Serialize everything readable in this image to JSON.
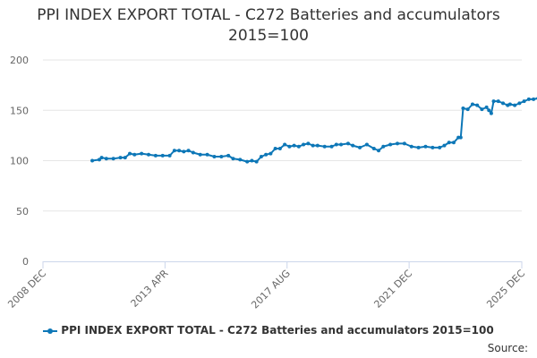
{
  "chart_data": {
    "type": "line",
    "title": "PPI INDEX EXPORT TOTAL - C272 Batteries and accumulators 2015=100",
    "xlabel": "",
    "ylabel": "",
    "x_tick_labels": [
      "2008 DEC",
      "2013 APR",
      "2017 AUG",
      "2021 DEC",
      "2025 DEC"
    ],
    "x_tick_dates": [
      "2008-12",
      "2013-04",
      "2017-08",
      "2021-12",
      "2025-12"
    ],
    "y_ticks": [
      0,
      50,
      100,
      150,
      200
    ],
    "ylim": [
      0,
      200
    ],
    "xlim": [
      "2008-12",
      "2025-12"
    ],
    "grid": true,
    "legend_position": "bottom",
    "series": [
      {
        "name": "PPI INDEX EXPORT TOTAL - C272 Batteries and accumulators 2015=100",
        "color": "#0d77b7",
        "points": [
          [
            "2010-09",
            100
          ],
          [
            "2010-12",
            101
          ],
          [
            "2011-01",
            103
          ],
          [
            "2011-03",
            102
          ],
          [
            "2011-06",
            102
          ],
          [
            "2011-09",
            103
          ],
          [
            "2011-11",
            103
          ],
          [
            "2012-01",
            107
          ],
          [
            "2012-03",
            106
          ],
          [
            "2012-06",
            107
          ],
          [
            "2012-09",
            106
          ],
          [
            "2012-12",
            105
          ],
          [
            "2013-03",
            105
          ],
          [
            "2013-06",
            105
          ],
          [
            "2013-08",
            110
          ],
          [
            "2013-10",
            110
          ],
          [
            "2013-12",
            109
          ],
          [
            "2014-02",
            110
          ],
          [
            "2014-04",
            108
          ],
          [
            "2014-07",
            106
          ],
          [
            "2014-10",
            106
          ],
          [
            "2015-01",
            104
          ],
          [
            "2015-04",
            104
          ],
          [
            "2015-07",
            105
          ],
          [
            "2015-09",
            102
          ],
          [
            "2015-12",
            101
          ],
          [
            "2016-03",
            99
          ],
          [
            "2016-05",
            100
          ],
          [
            "2016-07",
            99
          ],
          [
            "2016-09",
            104
          ],
          [
            "2016-11",
            106
          ],
          [
            "2017-01",
            107
          ],
          [
            "2017-03",
            112
          ],
          [
            "2017-05",
            112
          ],
          [
            "2017-07",
            116
          ],
          [
            "2017-09",
            114
          ],
          [
            "2017-11",
            115
          ],
          [
            "2018-01",
            114
          ],
          [
            "2018-03",
            116
          ],
          [
            "2018-05",
            117
          ],
          [
            "2018-07",
            115
          ],
          [
            "2018-09",
            115
          ],
          [
            "2018-12",
            114
          ],
          [
            "2019-03",
            114
          ],
          [
            "2019-05",
            116
          ],
          [
            "2019-07",
            116
          ],
          [
            "2019-10",
            117
          ],
          [
            "2019-12",
            115
          ],
          [
            "2020-03",
            113
          ],
          [
            "2020-06",
            116
          ],
          [
            "2020-09",
            112
          ],
          [
            "2020-11",
            110
          ],
          [
            "2021-01",
            114
          ],
          [
            "2021-04",
            116
          ],
          [
            "2021-07",
            117
          ],
          [
            "2021-10",
            117
          ],
          [
            "2022-01",
            114
          ],
          [
            "2022-04",
            113
          ],
          [
            "2022-07",
            114
          ],
          [
            "2022-10",
            113
          ],
          [
            "2023-01",
            113
          ],
          [
            "2023-03",
            115
          ],
          [
            "2023-05",
            118
          ],
          [
            "2023-07",
            118
          ],
          [
            "2023-09",
            123
          ],
          [
            "2023-10",
            123
          ],
          [
            "2023-11",
            152
          ],
          [
            "2024-01",
            151
          ],
          [
            "2024-03",
            156
          ],
          [
            "2024-05",
            155
          ],
          [
            "2024-07",
            151
          ],
          [
            "2024-09",
            153
          ],
          [
            "2024-10",
            150
          ],
          [
            "2024-11",
            147
          ],
          [
            "2024-12",
            159
          ],
          [
            "2025-02",
            159
          ],
          [
            "2025-04",
            157
          ],
          [
            "2025-06",
            155
          ],
          [
            "2025-07",
            156
          ],
          [
            "2025-09",
            155
          ],
          [
            "2025-11",
            157
          ],
          [
            "2026-01",
            159
          ],
          [
            "2026-03",
            161
          ],
          [
            "2026-05",
            161
          ],
          [
            "2026-07",
            162
          ],
          [
            "2026-09",
            163
          ]
        ]
      }
    ]
  },
  "source_label": "Source:"
}
